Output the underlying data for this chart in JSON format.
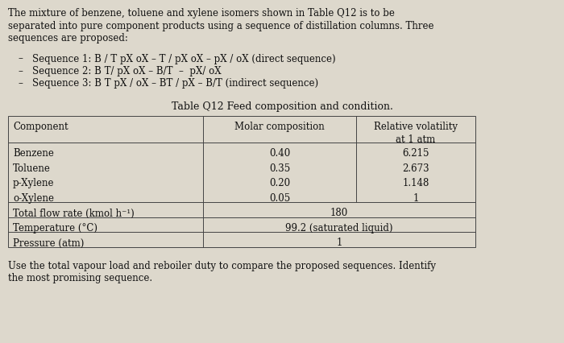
{
  "bg_color": "#ddd8cc",
  "title_text": "Table Q12 Feed composition and condition.",
  "intro_lines": [
    "The mixture of benzene, toluene and xylene isomers shown in Table Q12 is to be",
    "separated into pure component products using a sequence of distillation columns. Three",
    "sequences are proposed:"
  ],
  "sequences": [
    "Sequence 1: B / T pX oX – T / pX oX – pX / oX (direct sequence)",
    "Sequence 2: B T/ pX oX – B/T  –  pX/ oX",
    "Sequence 3: B T pX / oX – BT / pX – B/T (indirect sequence)"
  ],
  "col_headers_0": "Component",
  "col_headers_1": "Molar composition",
  "col_headers_2a": "Relative volatility",
  "col_headers_2b": "at 1 atm",
  "components": [
    "Benzene",
    "Toluene",
    "p-Xylene",
    "o-Xylene"
  ],
  "molar_comp": [
    "0.40",
    "0.35",
    "0.20",
    "0.05"
  ],
  "rel_vol": [
    "6.215",
    "2.673",
    "1.148",
    "1"
  ],
  "extra_rows": [
    [
      "Total flow rate (kmol h⁻¹)",
      "180"
    ],
    [
      "Temperature (°C)",
      "99.2 (saturated liquid)"
    ],
    [
      "Pressure (atm)",
      "1"
    ]
  ],
  "footer_lines": [
    "Use the total vapour load and reboiler duty to compare the proposed sequences. Identify",
    "the most promising sequence."
  ],
  "text_color": "#111111",
  "table_line_color": "#444444",
  "fs_body": 8.5,
  "fs_title": 9.0,
  "fs_seq": 8.5
}
